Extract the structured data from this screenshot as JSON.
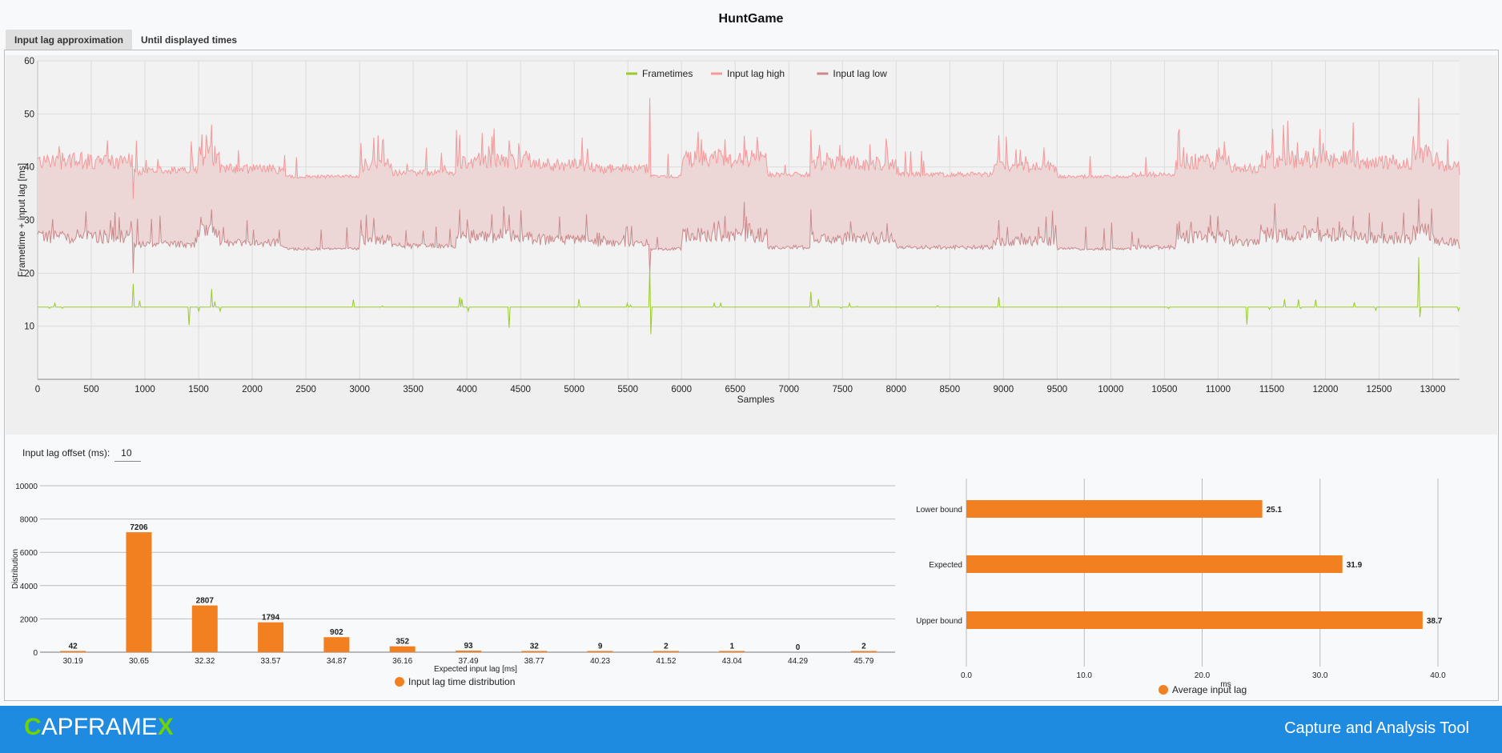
{
  "window": {
    "title": "HuntGame"
  },
  "tabs": [
    {
      "label": "Input lag approximation",
      "active": true
    },
    {
      "label": "Until displayed times",
      "active": false
    }
  ],
  "main_chart": {
    "type": "line",
    "ylabel": "Frametime + input lag [ms]",
    "xlabel": "Samples",
    "xlim": [
      0,
      13250
    ],
    "ylim": [
      0,
      60
    ],
    "x_ticks": [
      0,
      500,
      1000,
      1500,
      2000,
      2500,
      3000,
      3500,
      4000,
      4500,
      5000,
      5500,
      6000,
      6500,
      7000,
      7500,
      8000,
      8500,
      9000,
      9500,
      10000,
      10500,
      11000,
      11500,
      12000,
      12500,
      13000
    ],
    "y_ticks": [
      10,
      20,
      30,
      40,
      50,
      60
    ],
    "legend": [
      {
        "name": "Frametimes",
        "color": "#99cc2a"
      },
      {
        "name": "Input lag high",
        "color": "#f5999b"
      },
      {
        "name": "Input lag low",
        "color": "#c98a8c"
      }
    ],
    "colors": {
      "frametimes": "#99cc2a",
      "high": "#f5999b",
      "low": "#c98a8c",
      "band": "#ecd6d6"
    },
    "series_baseline": {
      "frametimes": 13.6,
      "input_lag_high": 37.5,
      "input_lag_low": 24.0
    },
    "segments": [
      [
        0,
        900,
        1.0
      ],
      [
        900,
        1500,
        0.5
      ],
      [
        1500,
        1700,
        1.3
      ],
      [
        1700,
        2300,
        0.6
      ],
      [
        2300,
        3000,
        0.2
      ],
      [
        3000,
        3300,
        0.8
      ],
      [
        3300,
        3900,
        0.4
      ],
      [
        3900,
        4600,
        1.0
      ],
      [
        4600,
        5200,
        0.8
      ],
      [
        5200,
        5700,
        0.6
      ],
      [
        5700,
        6000,
        0.2
      ],
      [
        6000,
        6800,
        1.1
      ],
      [
        6800,
        7200,
        0.3
      ],
      [
        7200,
        8000,
        0.9
      ],
      [
        8000,
        8900,
        0.3
      ],
      [
        8900,
        9500,
        0.7
      ],
      [
        9500,
        10200,
        0.2
      ],
      [
        10200,
        10600,
        0.3
      ],
      [
        10600,
        11100,
        1.0
      ],
      [
        11100,
        11400,
        0.6
      ],
      [
        11400,
        12300,
        1.1
      ],
      [
        12300,
        12800,
        0.9
      ],
      [
        12800,
        13000,
        1.3
      ],
      [
        13000,
        13250,
        0.7
      ]
    ],
    "spikes": [
      {
        "x": 890,
        "high": 34,
        "low": 20,
        "ft": 9
      },
      {
        "x": 895,
        "ft": 18
      },
      {
        "x": 1410,
        "ft": 10.2
      },
      {
        "x": 1620,
        "high": 48,
        "low": 32,
        "ft": 17
      },
      {
        "x": 3930,
        "high": 46,
        "low": 32,
        "ft": 15.5
      },
      {
        "x": 4390,
        "high": 45,
        "low": 31,
        "ft": 9.7
      },
      {
        "x": 5705,
        "high": 53,
        "low": 20,
        "ft": 21
      },
      {
        "x": 5710,
        "ft": 8.5
      },
      {
        "x": 7210,
        "high": 47,
        "low": 32,
        "ft": 16.5
      },
      {
        "x": 8960,
        "high": 46,
        "low": 30,
        "ft": 15.5
      },
      {
        "x": 11270,
        "ft": 10.3
      },
      {
        "x": 12870,
        "high": 53,
        "low": 34,
        "ft": 23
      },
      {
        "x": 12880,
        "ft": 11.7
      }
    ]
  },
  "offset": {
    "label": "Input lag offset (ms):",
    "value": "10"
  },
  "hist_chart": {
    "type": "bar",
    "ylabel": "Distribution",
    "xlabel": "Expected input lag [ms]",
    "ylim": [
      0,
      10000
    ],
    "y_ticks": [
      "0",
      "2000",
      "4000",
      "6000",
      "8000",
      "10000"
    ],
    "categories": [
      "30.19",
      "30.65",
      "32.32",
      "33.57",
      "34.87",
      "36.16",
      "37.49",
      "38.77",
      "40.23",
      "41.52",
      "43.04",
      "44.29",
      "45.79"
    ],
    "values": [
      42,
      7206,
      2807,
      1794,
      902,
      352,
      93,
      32,
      9,
      2,
      1,
      0,
      2
    ],
    "value_labels": [
      "42",
      "7206",
      "2807",
      "1794",
      "902",
      "352",
      "93",
      "32",
      "9",
      "2",
      "1",
      "0",
      "2"
    ],
    "legend": "Input lag time distribution",
    "color": "#f28020"
  },
  "avg_chart": {
    "type": "bar",
    "orientation": "horizontal",
    "xlabel": "ms",
    "xlim": [
      0,
      40
    ],
    "x_ticks": [
      "0.0",
      "10.0",
      "20.0",
      "30.0",
      "40.0"
    ],
    "categories": [
      "Lower bound",
      "Expected",
      "Upper bound"
    ],
    "values": [
      25.1,
      31.9,
      38.7
    ],
    "value_labels": [
      "25.1",
      "31.9",
      "38.7"
    ],
    "legend": "Average input lag",
    "color": "#f28020"
  },
  "footer": {
    "logo_c": "C",
    "logo_mid": "APFRAME",
    "logo_x": "X",
    "tagline": "Capture and Analysis Tool"
  }
}
